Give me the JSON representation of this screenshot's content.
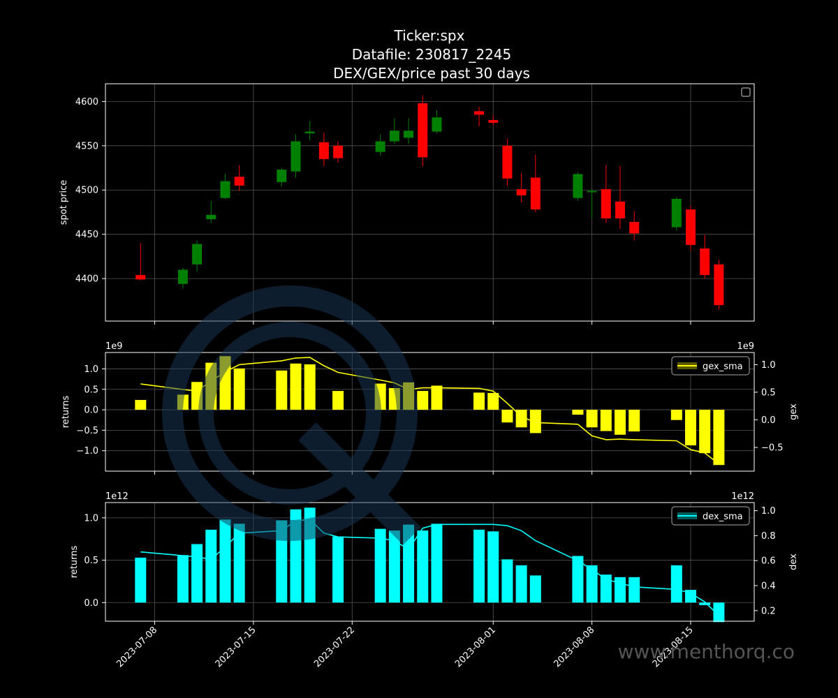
{
  "title": [
    "Ticker:spx",
    "Datafile: 230817_2245",
    "DEX/GEX/price past 30 days"
  ],
  "watermark": "www.menthorq.co",
  "colors": {
    "background": "#000000",
    "up": "#008000",
    "down": "#ff0000",
    "gex": "#ffff00",
    "dex": "#00ffff",
    "grid": "#555555",
    "axes": "#ffffff",
    "watermark_logo": "#1a2d4a"
  },
  "chart_data": [
    {
      "type": "candlestick",
      "name": "price",
      "ylabel": "spot price",
      "ylim": [
        4352,
        4620
      ],
      "yticks": [
        4400,
        4450,
        4500,
        4550,
        4600
      ],
      "legend": "top-right",
      "grid": true,
      "dates": [
        "2023-07-07",
        "2023-07-10",
        "2023-07-11",
        "2023-07-12",
        "2023-07-13",
        "2023-07-14",
        "2023-07-17",
        "2023-07-18",
        "2023-07-19",
        "2023-07-20",
        "2023-07-21",
        "2023-07-24",
        "2023-07-25",
        "2023-07-26",
        "2023-07-27",
        "2023-07-28",
        "2023-07-31",
        "2023-08-01",
        "2023-08-02",
        "2023-08-03",
        "2023-08-04",
        "2023-08-07",
        "2023-08-08",
        "2023-08-09",
        "2023-08-10",
        "2023-08-11",
        "2023-08-14",
        "2023-08-15",
        "2023-08-16",
        "2023-08-17"
      ],
      "open": [
        4404,
        4394,
        4416,
        4467,
        4491,
        4515,
        4509,
        4521,
        4564,
        4554,
        4550,
        4543,
        4555,
        4559,
        4598,
        4566,
        4589,
        4579,
        4550,
        4501,
        4514,
        4491,
        4498,
        4501,
        4487,
        4464,
        4458,
        4478,
        4434,
        4416
      ],
      "close": [
        4399,
        4410,
        4439,
        4472,
        4510,
        4505,
        4523,
        4555,
        4566,
        4535,
        4536,
        4555,
        4567,
        4567,
        4537,
        4582,
        4585,
        4576,
        4513,
        4494,
        4478,
        4518,
        4499,
        4468,
        4468,
        4451,
        4490,
        4438,
        4404,
        4370
      ],
      "high": [
        4440,
        4412,
        4443,
        4488,
        4518,
        4528,
        4525,
        4563,
        4578,
        4565,
        4555,
        4563,
        4581,
        4581,
        4607,
        4590,
        4594,
        4584,
        4558,
        4519,
        4540,
        4520,
        4501,
        4528,
        4527,
        4476,
        4492,
        4482,
        4449,
        4421
      ],
      "low": [
        4398,
        4389,
        4408,
        4463,
        4490,
        4499,
        4504,
        4514,
        4556,
        4527,
        4531,
        4539,
        4552,
        4552,
        4527,
        4564,
        4572,
        4573,
        4505,
        4486,
        4475,
        4488,
        4468,
        4463,
        4456,
        4443,
        4454,
        4432,
        4400,
        4365
      ]
    },
    {
      "type": "bar+line",
      "name": "gex",
      "ylabel": "returns",
      "ylabel_right": "gex",
      "offset_left": "1e9",
      "offset_right": "1e9",
      "ylim": [
        -1.5,
        1.4
      ],
      "yticks": [
        -1.0,
        -0.5,
        0.0,
        0.5,
        1.0
      ],
      "yticklabels": [
        "−1.0",
        "−0.5",
        "0.0",
        "0.5",
        "1.0"
      ],
      "ylim_right": [
        -0.93,
        1.22
      ],
      "yticks_right": [
        -0.5,
        0.0,
        0.5,
        1.0
      ],
      "yticklabels_right": [
        "−0.5",
        "0.0",
        "0.5",
        "1.0"
      ],
      "legend_label": "gex_sma",
      "legend": "top-right",
      "grid": true,
      "values": [
        0.24,
        0.37,
        0.68,
        1.15,
        1.31,
        1.01,
        0.96,
        1.13,
        1.11,
        0.46,
        0.64,
        0.53,
        0.67,
        0.46,
        0.59,
        0.42,
        0.41,
        -0.31,
        -0.43,
        -0.57,
        -0.12,
        -0.43,
        -0.52,
        -0.61,
        -0.53,
        -0.25,
        -0.87,
        -1.06,
        -1.35
      ],
      "sma": [
        0.65,
        0.55,
        0.52,
        0.7,
        0.87,
        1.0,
        1.07,
        1.12,
        1.13,
        0.98,
        0.86,
        0.72,
        0.67,
        0.55,
        0.58,
        0.58,
        0.57,
        0.52,
        0.3,
        0.06,
        -0.05,
        -0.08,
        -0.29,
        -0.36,
        -0.35,
        -0.36,
        -0.38,
        -0.54,
        -0.6,
        -0.8
      ]
    },
    {
      "type": "bar+line",
      "name": "dex",
      "ylabel": "returns",
      "ylabel_right": "dex",
      "offset_left": "1e12",
      "offset_right": "1e12",
      "ylim": [
        -0.22,
        1.18
      ],
      "yticks": [
        0.0,
        0.5,
        1.0
      ],
      "yticklabels": [
        "0.0",
        "0.5",
        "1.0"
      ],
      "ylim_right": [
        0.115,
        1.065
      ],
      "yticks_right": [
        0.2,
        0.4,
        0.6,
        0.8,
        1.0
      ],
      "yticklabels_right": [
        "0.2",
        "0.4",
        "0.6",
        "0.8",
        "1.0"
      ],
      "legend_label": "dex_sma",
      "legend": "top-right",
      "grid": true,
      "values": [
        0.53,
        0.56,
        0.69,
        0.86,
        0.98,
        0.93,
        0.97,
        1.1,
        1.12,
        0.78,
        0.87,
        0.85,
        0.92,
        0.85,
        0.93,
        0.86,
        0.84,
        0.51,
        0.44,
        0.32,
        0.55,
        0.44,
        0.33,
        0.3,
        0.3,
        0.44,
        0.15,
        -0.03,
        -0.23
      ],
      "sma": [
        0.67,
        0.64,
        0.63,
        0.61,
        0.71,
        0.82,
        0.84,
        0.92,
        0.93,
        0.82,
        0.79,
        0.78,
        0.76,
        0.69,
        0.86,
        0.89,
        0.89,
        0.89,
        0.88,
        0.84,
        0.76,
        0.6,
        0.53,
        0.45,
        0.42,
        0.39,
        0.37,
        0.34,
        0.27,
        0.16
      ]
    }
  ],
  "x_axis": {
    "tick_dates": [
      "2023-07-08",
      "2023-07-15",
      "2023-07-22",
      "2023-08-01",
      "2023-08-08",
      "2023-08-15"
    ],
    "bar_dates": [
      "2023-07-07",
      "2023-07-10",
      "2023-07-11",
      "2023-07-12",
      "2023-07-13",
      "2023-07-14",
      "2023-07-17",
      "2023-07-18",
      "2023-07-19",
      "2023-07-21",
      "2023-07-24",
      "2023-07-25",
      "2023-07-26",
      "2023-07-27",
      "2023-07-28",
      "2023-07-31",
      "2023-08-01",
      "2023-08-02",
      "2023-08-03",
      "2023-08-04",
      "2023-08-07",
      "2023-08-08",
      "2023-08-09",
      "2023-08-10",
      "2023-08-11",
      "2023-08-14",
      "2023-08-15",
      "2023-08-16",
      "2023-08-17"
    ],
    "sma_dates": [
      "2023-07-07",
      "2023-07-10",
      "2023-07-11",
      "2023-07-12",
      "2023-07-13",
      "2023-07-14",
      "2023-07-17",
      "2023-07-18",
      "2023-07-19",
      "2023-07-20",
      "2023-07-21",
      "2023-07-24",
      "2023-07-25",
      "2023-07-26",
      "2023-07-27",
      "2023-07-28",
      "2023-07-31",
      "2023-08-01",
      "2023-08-02",
      "2023-08-03",
      "2023-08-04",
      "2023-08-07",
      "2023-08-08",
      "2023-08-09",
      "2023-08-10",
      "2023-08-11",
      "2023-08-14",
      "2023-08-15",
      "2023-08-16",
      "2023-08-17"
    ]
  }
}
